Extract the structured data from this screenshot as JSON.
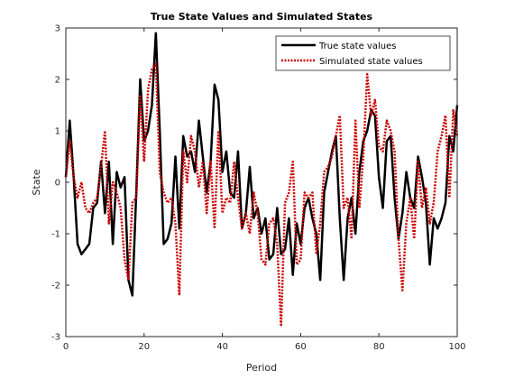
{
  "chart_data": {
    "type": "line",
    "title": "True State Values and Simulated States",
    "xlabel": "Period",
    "ylabel": "State",
    "xlim": [
      0,
      100
    ],
    "ylim": [
      -3,
      3
    ],
    "xticks": [
      0,
      20,
      40,
      60,
      80,
      100
    ],
    "yticks": [
      -3,
      -2,
      -1,
      0,
      1,
      2,
      3
    ],
    "grid": false,
    "legend_position": "top-right",
    "series": [
      {
        "name": "True state values",
        "color": "#000000",
        "style": "solid",
        "x": [
          0,
          1,
          2,
          3,
          4,
          5,
          6,
          7,
          8,
          9,
          10,
          11,
          12,
          13,
          14,
          15,
          16,
          17,
          18,
          19,
          20,
          21,
          22,
          23,
          24,
          25,
          26,
          27,
          28,
          29,
          30,
          31,
          32,
          33,
          34,
          35,
          36,
          37,
          38,
          39,
          40,
          41,
          42,
          43,
          44,
          45,
          46,
          47,
          48,
          49,
          50,
          51,
          52,
          53,
          54,
          55,
          56,
          57,
          58,
          59,
          60,
          61,
          62,
          63,
          64,
          65,
          66,
          67,
          68,
          69,
          70,
          71,
          72,
          73,
          74,
          75,
          76,
          77,
          78,
          79,
          80,
          81,
          82,
          83,
          84,
          85,
          86,
          87,
          88,
          89,
          90,
          91,
          92,
          93,
          94,
          95,
          96,
          97,
          98,
          99,
          100
        ],
        "y": [
          0.1,
          1.2,
          0.1,
          -1.2,
          -1.4,
          -1.3,
          -1.2,
          -0.5,
          -0.4,
          0.4,
          -0.6,
          0.4,
          -1.2,
          0.2,
          -0.1,
          0.1,
          -1.9,
          -2.2,
          -0.2,
          2.0,
          0.8,
          1.0,
          1.5,
          2.9,
          1.0,
          -1.2,
          -1.1,
          -0.8,
          0.5,
          -0.9,
          0.9,
          0.5,
          0.6,
          0.2,
          1.2,
          0.5,
          -0.2,
          0.4,
          1.9,
          1.6,
          0.2,
          0.6,
          -0.2,
          -0.3,
          0.6,
          -0.9,
          -0.6,
          0.3,
          -0.7,
          -0.5,
          -1.0,
          -0.7,
          -1.5,
          -1.4,
          -0.5,
          -1.4,
          -1.3,
          -0.7,
          -1.8,
          -0.8,
          -1.2,
          -0.5,
          -0.3,
          -0.7,
          -1.0,
          -1.9,
          -0.2,
          0.2,
          0.6,
          0.9,
          -0.7,
          -1.9,
          -0.7,
          -0.3,
          -1.0,
          0.2,
          0.8,
          1.0,
          1.4,
          1.3,
          0.1,
          -0.5,
          0.8,
          0.9,
          -0.3,
          -1.1,
          -0.6,
          0.2,
          -0.3,
          -0.5,
          0.5,
          0.1,
          -0.4,
          -1.6,
          -0.7,
          -0.9,
          -0.7,
          -0.4,
          0.9,
          0.6,
          1.5
        ]
      },
      {
        "name": "Simulated state values",
        "color": "#cc0000",
        "style": "dotted",
        "x": [
          0,
          1,
          2,
          3,
          4,
          5,
          6,
          7,
          8,
          9,
          10,
          11,
          12,
          13,
          14,
          15,
          16,
          17,
          18,
          19,
          20,
          21,
          22,
          23,
          24,
          25,
          26,
          27,
          28,
          29,
          30,
          31,
          32,
          33,
          34,
          35,
          36,
          37,
          38,
          39,
          40,
          41,
          42,
          43,
          44,
          45,
          46,
          47,
          48,
          49,
          50,
          51,
          52,
          53,
          54,
          55,
          56,
          57,
          58,
          59,
          60,
          61,
          62,
          63,
          64,
          65,
          66,
          67,
          68,
          69,
          70,
          71,
          72,
          73,
          74,
          75,
          76,
          77,
          78,
          79,
          80,
          81,
          82,
          83,
          84,
          85,
          86,
          87,
          88,
          89,
          90,
          91,
          92,
          93,
          94,
          95,
          96,
          97,
          98,
          99,
          100
        ],
        "y": [
          0.1,
          0.8,
          0.1,
          -0.3,
          0.0,
          -0.5,
          -0.6,
          -0.4,
          -0.3,
          0.3,
          1.0,
          -0.8,
          0.0,
          -0.2,
          -0.5,
          -1.5,
          -1.9,
          -0.4,
          -0.3,
          1.7,
          0.4,
          1.8,
          2.2,
          2.3,
          0.2,
          -0.2,
          -0.4,
          -0.3,
          -0.8,
          -2.2,
          0.6,
          0.0,
          0.9,
          0.6,
          -0.1,
          0.4,
          -0.6,
          0.4,
          -0.9,
          1.0,
          -0.6,
          -0.3,
          -0.4,
          0.4,
          -0.3,
          -0.9,
          -0.6,
          -1.0,
          -0.2,
          -0.6,
          -1.5,
          -1.6,
          -0.8,
          -0.7,
          -1.2,
          -2.8,
          -0.4,
          -0.2,
          0.4,
          -1.6,
          -1.5,
          -0.2,
          -0.3,
          -0.2,
          -1.4,
          -0.8,
          0.2,
          0.3,
          0.5,
          0.9,
          1.3,
          -0.5,
          -0.3,
          -1.1,
          1.2,
          -0.5,
          0.5,
          2.1,
          1.3,
          1.6,
          0.7,
          0.6,
          1.2,
          1.0,
          0.6,
          -1.1,
          -2.1,
          -0.8,
          -0.3,
          -1.1,
          0.4,
          -0.5,
          -0.1,
          -0.8,
          -0.4,
          0.6,
          0.9,
          1.3,
          -0.3,
          1.4,
          0.9
        ]
      }
    ]
  }
}
